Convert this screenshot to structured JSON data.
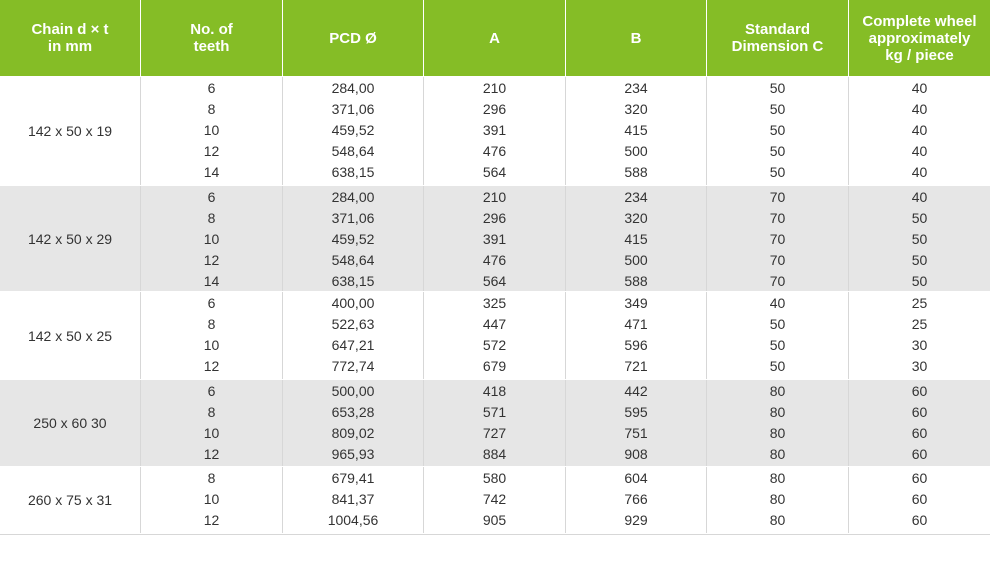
{
  "colors": {
    "header_bg": "#85bd26",
    "row_alt_bg": "#e6e6e6",
    "row_bg": "#ffffff"
  },
  "columns": [
    "Chain d × t\nin mm",
    "No. of\nteeth",
    "PCD Ø",
    "A",
    "B",
    "Standard\nDimension C",
    "Complete wheel\napproximately\nkg / piece"
  ],
  "groups": [
    {
      "chain": "142 x 50 x 19",
      "teeth": [
        "6",
        "8",
        "10",
        "12",
        "14"
      ],
      "pcd": [
        "284,00",
        "371,06",
        "459,52",
        "548,64",
        "638,15"
      ],
      "a": [
        "210",
        "296",
        "391",
        "476",
        "564"
      ],
      "b": [
        "234",
        "320",
        "415",
        "500",
        "588"
      ],
      "c": [
        "50",
        "50",
        "50",
        "50",
        "50"
      ],
      "kg": [
        "40",
        "40",
        "40",
        "40",
        "40"
      ]
    },
    {
      "chain": "142 x 50 x 29",
      "teeth": [
        "6",
        "8",
        "10",
        "12",
        "14"
      ],
      "pcd": [
        "284,00",
        "371,06",
        "459,52",
        "548,64",
        "638,15"
      ],
      "a": [
        "210",
        "296",
        "391",
        "476",
        "564"
      ],
      "b": [
        "234",
        "320",
        "415",
        "500",
        "588"
      ],
      "c": [
        "70",
        "70",
        "70",
        "70",
        "70"
      ],
      "kg": [
        "40",
        "50",
        "50",
        "50",
        "50"
      ]
    },
    {
      "chain": "142 x 50 x 25",
      "teeth": [
        "6",
        "8",
        "10",
        "12"
      ],
      "pcd": [
        "400,00",
        "522,63",
        "647,21",
        "772,74"
      ],
      "a": [
        "325",
        "447",
        "572",
        "679"
      ],
      "b": [
        "349",
        "471",
        "596",
        "721"
      ],
      "c": [
        "40",
        "50",
        "50",
        "50"
      ],
      "kg": [
        "25",
        "25",
        "30",
        "30"
      ]
    },
    {
      "chain": "250 x 60 30",
      "teeth": [
        "6",
        "8",
        "10",
        "12"
      ],
      "pcd": [
        "500,00",
        "653,28",
        "809,02",
        "965,93"
      ],
      "a": [
        "418",
        "571",
        "727",
        "884"
      ],
      "b": [
        "442",
        "595",
        "751",
        "908"
      ],
      "c": [
        "80",
        "80",
        "80",
        "80"
      ],
      "kg": [
        "60",
        "60",
        "60",
        "60"
      ]
    },
    {
      "chain": "260 x 75 x 31",
      "teeth": [
        "8",
        "10",
        "12"
      ],
      "pcd": [
        "679,41",
        "841,37",
        "1004,56"
      ],
      "a": [
        "580",
        "742",
        "905"
      ],
      "b": [
        "604",
        "766",
        "929"
      ],
      "c": [
        "80",
        "80",
        "80"
      ],
      "kg": [
        "60",
        "60",
        "60"
      ]
    }
  ]
}
